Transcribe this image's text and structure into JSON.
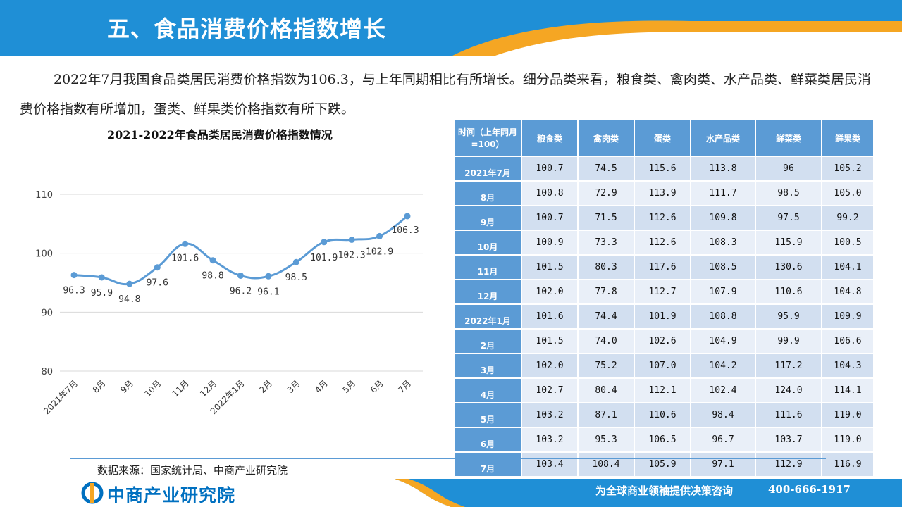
{
  "header": {
    "title": "五、食品消费价格指数增长"
  },
  "intro": "2022年7月我国食品类居民消费价格指数为106.3，与上年同期相比有所增长。细分品类来看，粮食类、禽肉类、水产品类、鲜菜类居民消费价格指数有所增加，蛋类、鲜果类价格指数有所下跌。",
  "chart_data": {
    "type": "line",
    "title": "2021-2022年食品类居民消费价格指数情况",
    "categories": [
      "2021年7月",
      "8月",
      "9月",
      "10月",
      "11月",
      "12月",
      "2022年1月",
      "2月",
      "3月",
      "4月",
      "5月",
      "6月",
      "7月"
    ],
    "values": [
      96.3,
      95.9,
      94.8,
      97.6,
      101.6,
      98.8,
      96.2,
      96.1,
      98.5,
      101.9,
      102.3,
      102.9,
      106.3
    ],
    "value_labels": [
      "96.3",
      "95.9",
      "94.8",
      "97.6",
      "101.6",
      "98.8",
      "96.2",
      "96.1",
      "98.5",
      "101.9",
      "102.3",
      "102.9",
      "106.3"
    ],
    "yticks": [
      "80",
      "90",
      "100",
      "110"
    ],
    "ylim": [
      80,
      110
    ],
    "grid": true,
    "line_color": "#5b9bd5"
  },
  "table": {
    "headers": [
      "时间（上年同月=100）",
      "粮食类",
      "禽肉类",
      "蛋类",
      "水产品类",
      "鲜菜类",
      "鲜果类"
    ],
    "rows": [
      [
        "2021年7月",
        "100.7",
        "74.5",
        "115.6",
        "113.8",
        "96",
        "105.2"
      ],
      [
        "8月",
        "100.8",
        "72.9",
        "113.9",
        "111.7",
        "98.5",
        "105.0"
      ],
      [
        "9月",
        "100.7",
        "71.5",
        "112.6",
        "109.8",
        "97.5",
        "99.2"
      ],
      [
        "10月",
        "100.9",
        "73.3",
        "112.6",
        "108.3",
        "115.9",
        "100.5"
      ],
      [
        "11月",
        "101.5",
        "80.3",
        "117.6",
        "108.5",
        "130.6",
        "104.1"
      ],
      [
        "12月",
        "102.0",
        "77.8",
        "112.7",
        "107.9",
        "110.6",
        "104.8"
      ],
      [
        "2022年1月",
        "101.6",
        "74.4",
        "101.9",
        "108.8",
        "95.9",
        "109.9"
      ],
      [
        "2月",
        "101.5",
        "74.0",
        "102.6",
        "104.9",
        "99.9",
        "106.6"
      ],
      [
        "3月",
        "102.0",
        "75.2",
        "107.0",
        "104.2",
        "117.2",
        "104.3"
      ],
      [
        "4月",
        "102.7",
        "80.4",
        "112.1",
        "102.4",
        "124.0",
        "114.1"
      ],
      [
        "5月",
        "103.2",
        "87.1",
        "110.6",
        "98.4",
        "111.6",
        "119.0"
      ],
      [
        "6月",
        "103.2",
        "95.3",
        "106.5",
        "96.7",
        "103.7",
        "119.0"
      ],
      [
        "7月",
        "103.4",
        "108.4",
        "105.9",
        "97.1",
        "112.9",
        "116.9"
      ]
    ]
  },
  "source": "数据来源：国家统计局、中商产业研究院",
  "footer": {
    "logo": "中商产业研究院",
    "slogan": "为全球商业领袖提供决策咨询",
    "phone": "400-666-1917"
  },
  "colors": {
    "header_blue": "#1f8fd6",
    "accent_orange": "#f5a623",
    "table_header": "#5b9bd5"
  }
}
